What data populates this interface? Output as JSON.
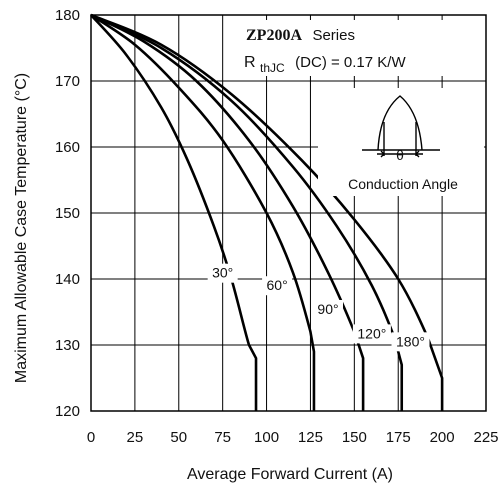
{
  "chart_data": {
    "type": "line",
    "title_model": "ZP200A",
    "title_series": "Series",
    "rth_main": "R",
    "rth_sub": "thJC",
    "rth_value": "(DC) = 0.17 K/W",
    "inset_label": "Conduction Angle",
    "inset_symbol": "θ",
    "xlabel": "Average Forward Current (A)",
    "ylabel": "Maximum Allowable Case Temperature (°C)",
    "xlim": [
      0,
      225
    ],
    "ylim": [
      120,
      180
    ],
    "xticks": [
      0,
      25,
      50,
      75,
      100,
      125,
      150,
      175,
      200,
      225
    ],
    "yticks": [
      120,
      130,
      140,
      150,
      160,
      170,
      180
    ],
    "grid": true,
    "series": [
      {
        "name": "30°",
        "x": [
          0,
          20,
          40,
          55,
          70,
          80,
          90,
          94,
          94
        ],
        "y": [
          180,
          174,
          166,
          158,
          148,
          140,
          130,
          128,
          120
        ]
      },
      {
        "name": "60°",
        "x": [
          0,
          25,
          50,
          75,
          100,
          115,
          125,
          127,
          127
        ],
        "y": [
          180,
          175.5,
          169,
          161,
          150,
          141,
          132,
          129,
          120
        ]
      },
      {
        "name": "90°",
        "x": [
          0,
          30,
          60,
          90,
          115,
          135,
          150,
          155,
          155
        ],
        "y": [
          180,
          176,
          170,
          161,
          151,
          141,
          132,
          128,
          120
        ]
      },
      {
        "name": "120°",
        "x": [
          0,
          40,
          80,
          115,
          140,
          160,
          173,
          177,
          177
        ],
        "y": [
          180,
          175,
          167,
          157,
          148,
          139,
          131,
          127,
          120
        ]
      },
      {
        "name": "180°",
        "x": [
          0,
          40,
          80,
          120,
          150,
          175,
          192,
          200,
          200
        ],
        "y": [
          180,
          175.5,
          168,
          158,
          149,
          140,
          131,
          125,
          120
        ]
      }
    ]
  }
}
